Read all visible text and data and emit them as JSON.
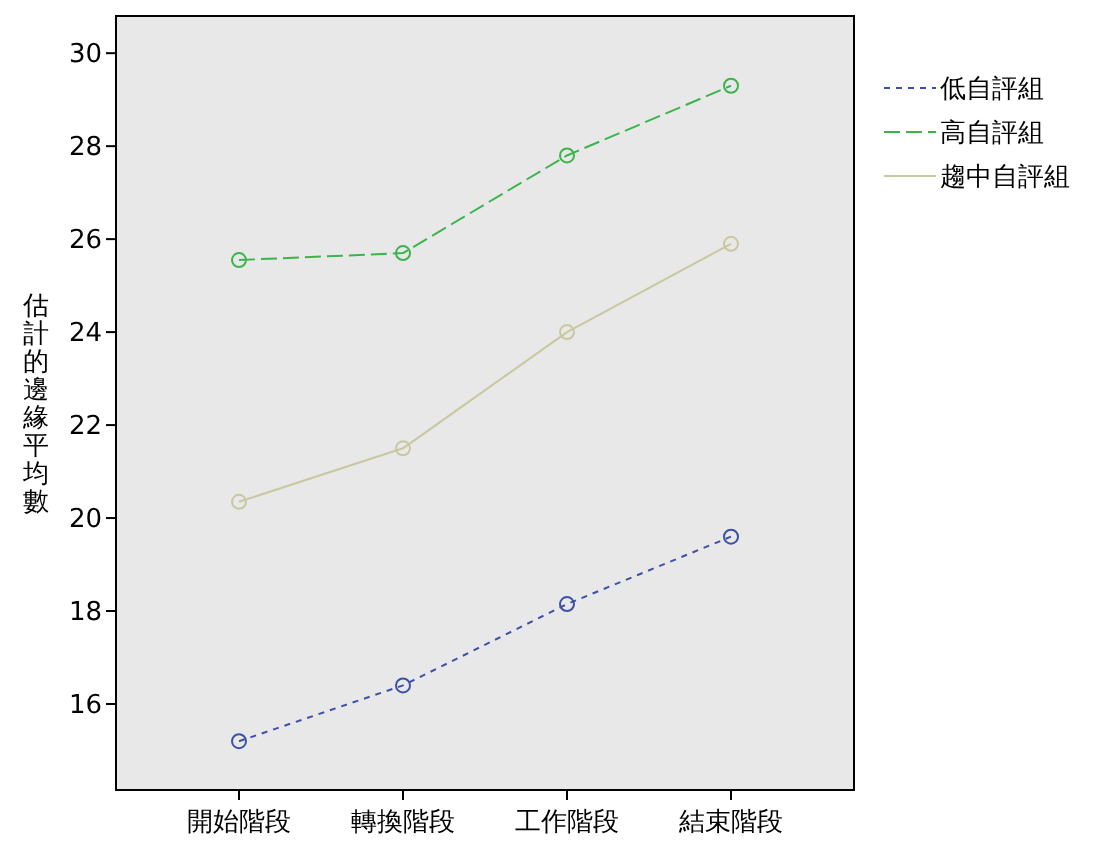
{
  "chart_data": {
    "type": "line",
    "ylabel": "估計的邊緣平均數",
    "categories": [
      "開始階段",
      "轉換階段",
      "工作階段",
      "結束階段"
    ],
    "ylim": [
      14.15,
      30.8
    ],
    "yticks": [
      16,
      18,
      20,
      22,
      24,
      26,
      28,
      30
    ],
    "marker": "circle",
    "legend": "right",
    "grid": false,
    "series": [
      {
        "name": "低自評組",
        "color": "#3c50a8",
        "line_style": "dotted",
        "values": [
          15.2,
          16.4,
          18.15,
          19.6
        ]
      },
      {
        "name": "高自評組",
        "color": "#3cb44b",
        "line_style": "dashed",
        "values": [
          25.55,
          25.7,
          27.8,
          29.3
        ]
      },
      {
        "name": "趨中自評組",
        "color": "#c8c8a0",
        "line_style": "solid",
        "values": [
          20.35,
          21.5,
          24.0,
          25.9
        ]
      }
    ]
  }
}
